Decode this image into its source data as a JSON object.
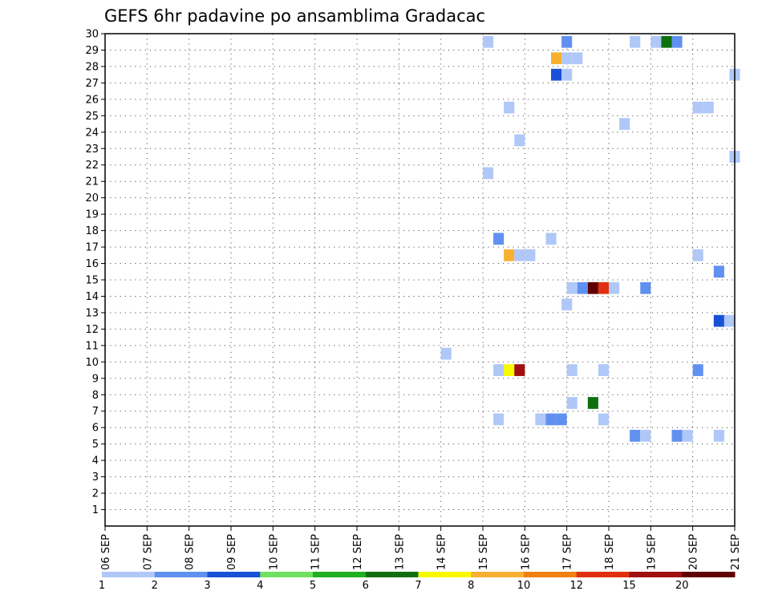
{
  "chart_data": {
    "type": "heatmap",
    "title": "GEFS 6hr padavine po ansamblima Gradacac",
    "xlabel": "",
    "ylabel": "",
    "x_tick_labels": [
      "06 SEP",
      "07 SEP",
      "08 SEP",
      "09 SEP",
      "10 SEP",
      "11 SEP",
      "12 SEP",
      "13 SEP",
      "14 SEP",
      "15 SEP",
      "16 SEP",
      "17 SEP",
      "18 SEP",
      "19 SEP",
      "20 SEP",
      "21 SEP"
    ],
    "y_tick_labels": [
      "1",
      "2",
      "3",
      "4",
      "5",
      "6",
      "7",
      "8",
      "9",
      "10",
      "11",
      "12",
      "13",
      "14",
      "15",
      "16",
      "17",
      "18",
      "19",
      "20",
      "21",
      "22",
      "23",
      "24",
      "25",
      "26",
      "27",
      "28",
      "29",
      "30"
    ],
    "xlim_days": [
      0,
      15
    ],
    "ylim": [
      0,
      30
    ],
    "grid": true,
    "colorbar": {
      "tick_labels": [
        "1",
        "2",
        "3",
        "4",
        "5",
        "6",
        "7",
        "8",
        "10",
        "12",
        "15",
        "20"
      ],
      "colors": [
        "#b0c8f8",
        "#6090f0",
        "#1850d8",
        "#70e060",
        "#20b020",
        "#107010",
        "#f8f800",
        "#f8b030",
        "#f08010",
        "#e03010",
        "#a01010",
        "#600000"
      ]
    },
    "cells": [
      {
        "day": 9.125,
        "member": 30,
        "color": "#b0c8f8"
      },
      {
        "day": 11.0,
        "member": 30,
        "color": "#6090f0"
      },
      {
        "day": 12.625,
        "member": 30,
        "color": "#b0c8f8"
      },
      {
        "day": 13.125,
        "member": 30,
        "color": "#b0c8f8"
      },
      {
        "day": 13.375,
        "member": 30,
        "color": "#107010"
      },
      {
        "day": 13.625,
        "member": 30,
        "color": "#6090f0"
      },
      {
        "day": 10.75,
        "member": 29,
        "color": "#f8b030"
      },
      {
        "day": 11.0,
        "member": 29,
        "color": "#b0c8f8"
      },
      {
        "day": 11.25,
        "member": 29,
        "color": "#b0c8f8"
      },
      {
        "day": 10.75,
        "member": 28,
        "color": "#1850d8"
      },
      {
        "day": 11.0,
        "member": 28,
        "color": "#b0c8f8"
      },
      {
        "day": 15.0,
        "member": 28,
        "color": "#b0c8f8"
      },
      {
        "day": 9.625,
        "member": 26,
        "color": "#b0c8f8"
      },
      {
        "day": 14.125,
        "member": 26,
        "color": "#b0c8f8"
      },
      {
        "day": 14.375,
        "member": 26,
        "color": "#b0c8f8"
      },
      {
        "day": 12.375,
        "member": 25,
        "color": "#b0c8f8"
      },
      {
        "day": 9.875,
        "member": 24,
        "color": "#b0c8f8"
      },
      {
        "day": 15.0,
        "member": 23,
        "color": "#b0c8f8"
      },
      {
        "day": 9.125,
        "member": 22,
        "color": "#b0c8f8"
      },
      {
        "day": 9.375,
        "member": 18,
        "color": "#6090f0"
      },
      {
        "day": 10.625,
        "member": 18,
        "color": "#b0c8f8"
      },
      {
        "day": 9.625,
        "member": 17,
        "color": "#f8b030"
      },
      {
        "day": 9.875,
        "member": 17,
        "color": "#b0c8f8"
      },
      {
        "day": 10.125,
        "member": 17,
        "color": "#b0c8f8"
      },
      {
        "day": 14.125,
        "member": 17,
        "color": "#b0c8f8"
      },
      {
        "day": 14.625,
        "member": 16,
        "color": "#6090f0"
      },
      {
        "day": 11.125,
        "member": 15,
        "color": "#b0c8f8"
      },
      {
        "day": 11.375,
        "member": 15,
        "color": "#6090f0"
      },
      {
        "day": 11.625,
        "member": 15,
        "color": "#600000"
      },
      {
        "day": 11.875,
        "member": 15,
        "color": "#e03010"
      },
      {
        "day": 12.125,
        "member": 15,
        "color": "#b0c8f8"
      },
      {
        "day": 12.875,
        "member": 15,
        "color": "#6090f0"
      },
      {
        "day": 11.0,
        "member": 14,
        "color": "#b0c8f8"
      },
      {
        "day": 14.625,
        "member": 13,
        "color": "#1850d8"
      },
      {
        "day": 14.875,
        "member": 13,
        "color": "#b0c8f8"
      },
      {
        "day": 8.125,
        "member": 11,
        "color": "#b0c8f8"
      },
      {
        "day": 9.375,
        "member": 10,
        "color": "#b0c8f8"
      },
      {
        "day": 9.625,
        "member": 10,
        "color": "#f8f800"
      },
      {
        "day": 9.875,
        "member": 10,
        "color": "#a01010"
      },
      {
        "day": 11.125,
        "member": 10,
        "color": "#b0c8f8"
      },
      {
        "day": 11.875,
        "member": 10,
        "color": "#b0c8f8"
      },
      {
        "day": 14.125,
        "member": 10,
        "color": "#6090f0"
      },
      {
        "day": 11.125,
        "member": 8,
        "color": "#b0c8f8"
      },
      {
        "day": 11.625,
        "member": 8,
        "color": "#107010"
      },
      {
        "day": 9.375,
        "member": 7,
        "color": "#b0c8f8"
      },
      {
        "day": 10.375,
        "member": 7,
        "color": "#b0c8f8"
      },
      {
        "day": 10.625,
        "member": 7,
        "color": "#6090f0"
      },
      {
        "day": 10.875,
        "member": 7,
        "color": "#6090f0"
      },
      {
        "day": 11.875,
        "member": 7,
        "color": "#b0c8f8"
      },
      {
        "day": 12.625,
        "member": 6,
        "color": "#6090f0"
      },
      {
        "day": 12.875,
        "member": 6,
        "color": "#b0c8f8"
      },
      {
        "day": 13.625,
        "member": 6,
        "color": "#6090f0"
      },
      {
        "day": 13.875,
        "member": 6,
        "color": "#b0c8f8"
      },
      {
        "day": 14.625,
        "member": 6,
        "color": "#b0c8f8"
      }
    ]
  }
}
